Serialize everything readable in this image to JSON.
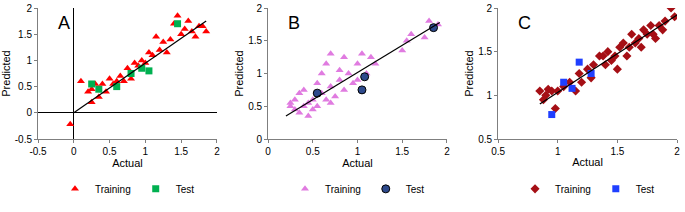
{
  "chart_data": [
    {
      "type": "scatter",
      "title": "A",
      "x_label": "Actual",
      "y_label": "Predicted",
      "xlim": [
        -0.5,
        2
      ],
      "ylim": [
        -0.5,
        2
      ],
      "xticks": [
        -0.5,
        0,
        0.5,
        1,
        1.5,
        2
      ],
      "yticks": [
        -0.5,
        0,
        0.5,
        1,
        1.5,
        2
      ],
      "grid": false,
      "legend": "bottom",
      "series": [
        {
          "name": "Training",
          "color": "#ff0000",
          "marker": "triangle-up",
          "x": [
            -0.05,
            0.1,
            0.2,
            0.25,
            0.3,
            0.35,
            0.4,
            0.45,
            0.5,
            0.55,
            0.6,
            0.65,
            0.7,
            0.75,
            0.8,
            0.85,
            0.9,
            0.95,
            1.0,
            1.05,
            1.1,
            1.15,
            1.2,
            1.25,
            1.3,
            1.35,
            1.4,
            1.45,
            1.5,
            1.55,
            1.6,
            1.65,
            1.7,
            1.75,
            1.8,
            1.85,
            0.25
          ],
          "values": [
            -0.22,
            0.6,
            0.4,
            0.45,
            0.55,
            0.3,
            0.55,
            0.4,
            0.65,
            0.55,
            0.6,
            0.7,
            0.6,
            0.85,
            0.65,
            0.95,
            0.9,
            1.0,
            0.95,
            1.15,
            1.1,
            1.45,
            1.2,
            1.35,
            1.15,
            1.4,
            1.7,
            1.85,
            1.5,
            1.6,
            1.75,
            1.55,
            1.45,
            1.65,
            1.65,
            1.55,
            0.2
          ]
        },
        {
          "name": "Test",
          "color": "#00b050",
          "marker": "square",
          "x": [
            0.25,
            0.35,
            0.6,
            0.8,
            0.95,
            1.05,
            1.45
          ],
          "values": [
            0.55,
            0.45,
            0.5,
            0.75,
            0.85,
            0.8,
            1.7
          ]
        },
        {
          "type": "line",
          "color": "#000000",
          "line_style": "solid",
          "x": [
            0,
            1.85
          ],
          "values": [
            0,
            1.75
          ]
        }
      ]
    },
    {
      "type": "scatter",
      "title": "B",
      "x_label": "Actual",
      "y_label": "Predicted",
      "xlim": [
        0,
        2
      ],
      "ylim": [
        0,
        2
      ],
      "xticks": [
        0,
        0.5,
        1,
        1.5,
        2
      ],
      "yticks": [
        0,
        0.5,
        1,
        1.5,
        2
      ],
      "grid": false,
      "legend": "bottom",
      "series": [
        {
          "name": "Training",
          "color": "#e07be0",
          "marker": "triangle-up",
          "x": [
            0.25,
            0.3,
            0.3,
            0.35,
            0.35,
            0.4,
            0.4,
            0.45,
            0.45,
            0.5,
            0.5,
            0.55,
            0.55,
            0.6,
            0.6,
            0.65,
            0.65,
            0.7,
            0.7,
            0.75,
            0.8,
            0.8,
            0.85,
            0.85,
            0.9,
            0.95,
            1.0,
            1.0,
            1.05,
            1.1,
            1.15,
            1.2,
            1.5,
            1.55,
            1.6,
            1.75,
            1.8,
            1.9,
            0.25,
            0.7
          ],
          "values": [
            0.5,
            0.45,
            0.6,
            0.4,
            0.7,
            0.5,
            0.75,
            0.55,
            0.35,
            0.6,
            0.45,
            0.5,
            0.85,
            0.7,
            1.0,
            0.6,
            1.15,
            0.8,
            1.3,
            0.65,
            0.9,
            1.05,
            0.75,
            1.25,
            1.0,
            0.85,
            1.15,
            0.9,
            1.3,
            1.0,
            1.25,
            1.15,
            1.35,
            1.5,
            1.6,
            1.55,
            1.8,
            1.75,
            0.55,
            0.55
          ]
        },
        {
          "name": "Test",
          "color": "#2e4a8c",
          "marker": "circle",
          "x": [
            0.55,
            1.05,
            1.08,
            1.85
          ],
          "values": [
            0.7,
            0.75,
            0.95,
            1.7
          ]
        },
        {
          "type": "line",
          "color": "#000000",
          "line_style": "solid",
          "x": [
            0.2,
            1.92
          ],
          "values": [
            0.35,
            1.78
          ]
        }
      ]
    },
    {
      "type": "scatter",
      "title": "C",
      "x_label": "Actual",
      "y_label": "Predicted",
      "xlim": [
        0.5,
        2
      ],
      "ylim": [
        0.5,
        2
      ],
      "xticks": [
        0.5,
        1,
        1.5,
        2
      ],
      "yticks": [
        0.5,
        1,
        1.5,
        2
      ],
      "grid": false,
      "legend": "bottom",
      "series": [
        {
          "name": "Training",
          "color": "#a50f15",
          "marker": "diamond",
          "x": [
            0.85,
            0.88,
            0.9,
            0.92,
            0.95,
            0.98,
            1.0,
            1.05,
            1.1,
            1.15,
            1.18,
            1.2,
            1.25,
            1.28,
            1.3,
            1.35,
            1.38,
            1.4,
            1.42,
            1.45,
            1.48,
            1.5,
            1.52,
            1.55,
            1.58,
            1.6,
            1.62,
            1.65,
            1.68,
            1.7,
            1.72,
            1.75,
            1.78,
            1.8,
            1.82,
            1.85,
            1.88,
            1.9,
            1.95,
            1.98
          ],
          "values": [
            1.05,
            0.95,
            1.0,
            1.07,
            1.05,
            0.85,
            1.05,
            1.1,
            1.15,
            1.05,
            1.25,
            1.15,
            1.3,
            1.2,
            1.35,
            1.45,
            1.45,
            1.35,
            1.5,
            1.4,
            1.45,
            1.3,
            1.55,
            1.6,
            1.45,
            1.55,
            1.7,
            1.6,
            1.65,
            1.55,
            1.75,
            1.7,
            1.8,
            1.7,
            1.65,
            1.8,
            1.75,
            1.85,
            2.0,
            1.9
          ]
        },
        {
          "name": "Test",
          "color": "#1f3fff",
          "marker": "square",
          "x": [
            0.95,
            1.05,
            1.12,
            1.18,
            1.28
          ],
          "values": [
            0.78,
            1.15,
            1.08,
            1.38,
            1.25
          ]
        },
        {
          "type": "line",
          "color": "#000000",
          "line_style": "solid",
          "x": [
            0.85,
            2
          ],
          "values": [
            0.9,
            1.92
          ]
        }
      ]
    }
  ]
}
